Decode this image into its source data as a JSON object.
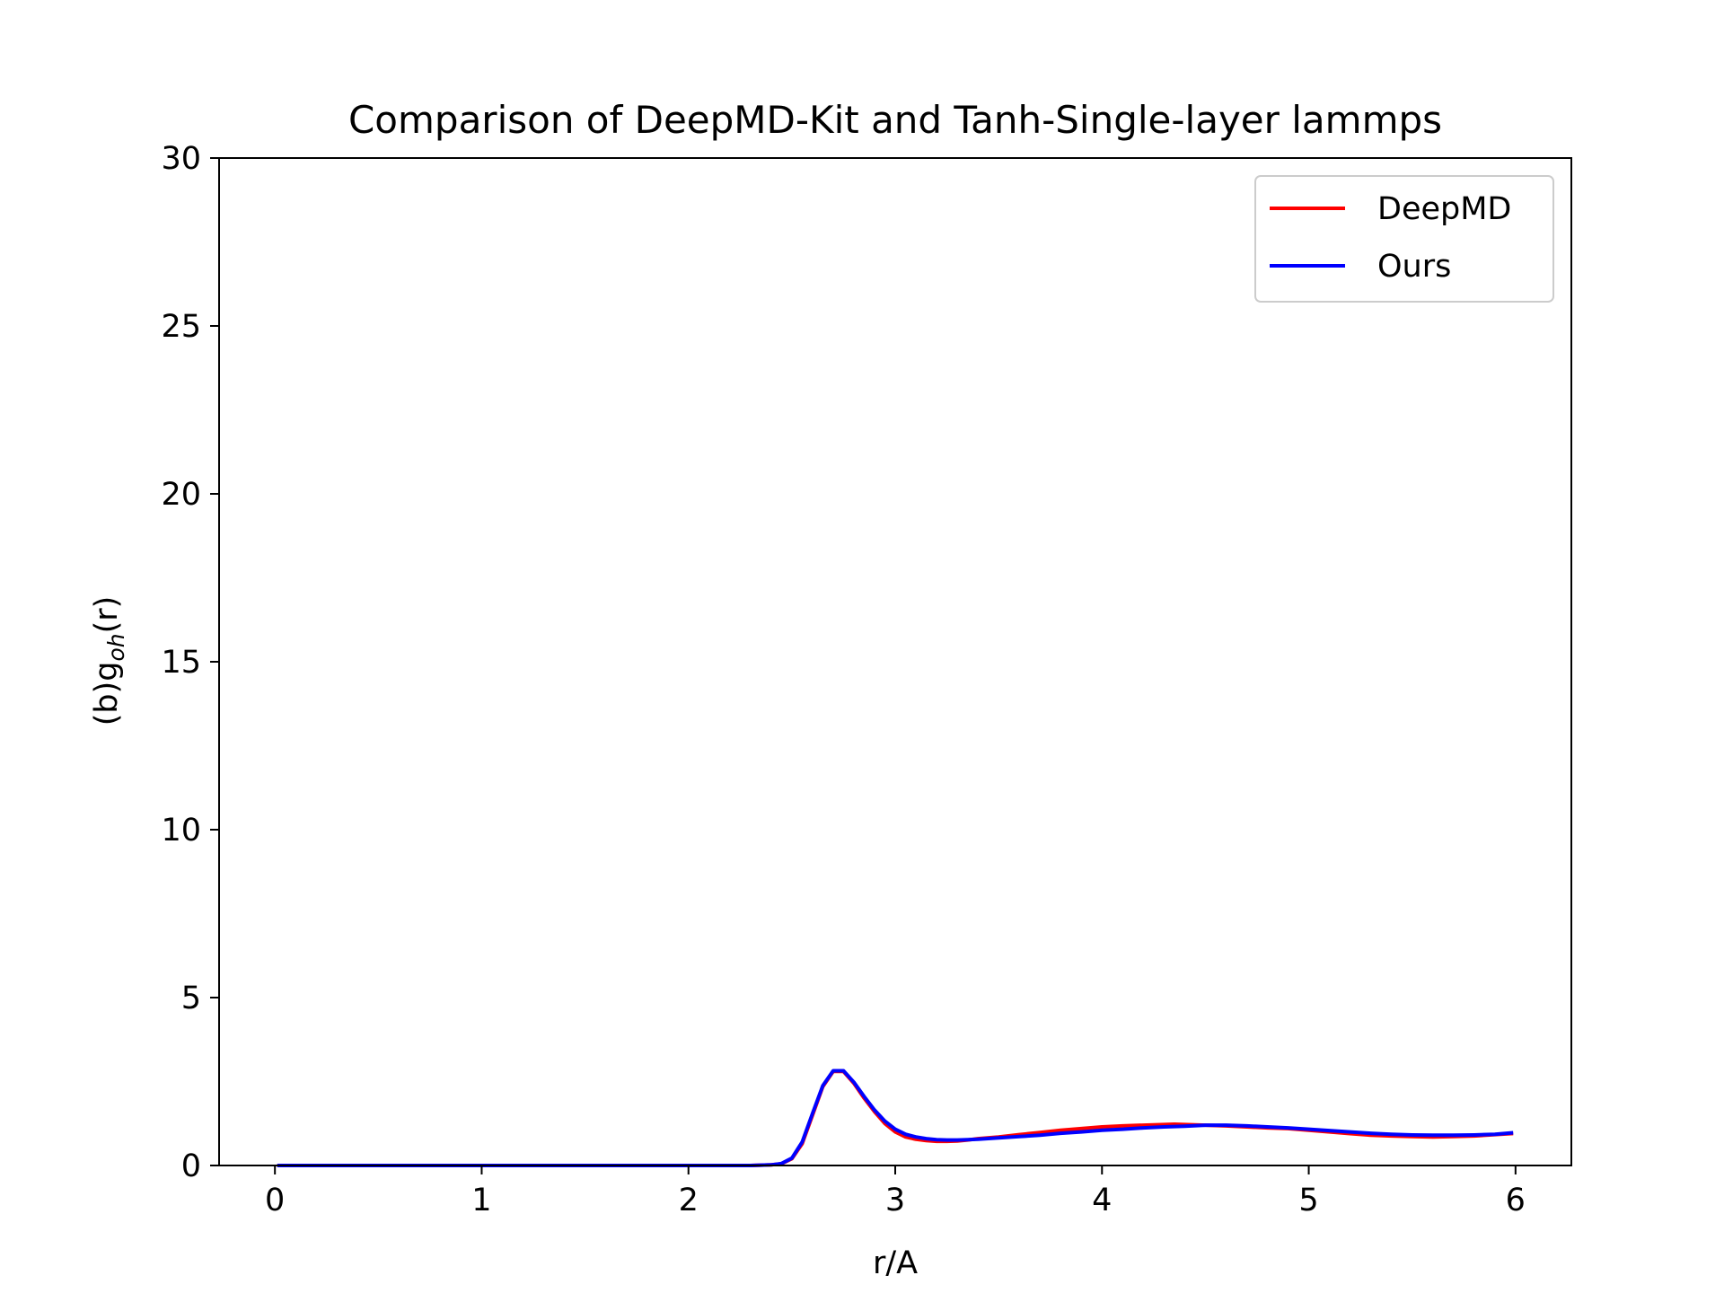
{
  "chart_data": {
    "type": "line",
    "title": "Comparison of DeepMD-Kit and Tanh-Single-layer lammps",
    "xlabel": "r/A",
    "ylabel_main": "(b)g",
    "ylabel_sub": "oh",
    "ylabel_tail": "(r)",
    "xlim": [
      -0.27,
      6.27
    ],
    "ylim": [
      0,
      30
    ],
    "xticks": [
      0,
      1,
      2,
      3,
      4,
      5,
      6
    ],
    "yticks": [
      0,
      5,
      10,
      15,
      20,
      25,
      30
    ],
    "grid": false,
    "legend_position": "top-right",
    "colors": {
      "deepmd": "#ff0000",
      "ours": "#0000ff"
    },
    "series": [
      {
        "name": "DeepMD",
        "color": "#ff0000",
        "x": [
          0.02,
          0.5,
          1.0,
          1.5,
          2.0,
          2.3,
          2.4,
          2.45,
          2.5,
          2.55,
          2.6,
          2.65,
          2.7,
          2.75,
          2.8,
          2.85,
          2.9,
          2.95,
          3.0,
          3.05,
          3.1,
          3.15,
          3.2,
          3.25,
          3.3,
          3.35,
          3.4,
          3.5,
          3.6,
          3.7,
          3.8,
          3.9,
          4.0,
          4.1,
          4.2,
          4.3,
          4.35,
          4.4,
          4.5,
          4.6,
          4.7,
          4.8,
          4.9,
          5.0,
          5.1,
          5.2,
          5.3,
          5.4,
          5.5,
          5.6,
          5.7,
          5.8,
          5.9,
          5.98
        ],
        "y": [
          0.0,
          0.0,
          0.0,
          0.0,
          0.0,
          0.0,
          0.02,
          0.05,
          0.2,
          0.65,
          1.5,
          2.35,
          2.8,
          2.8,
          2.45,
          2.0,
          1.6,
          1.25,
          1.0,
          0.85,
          0.78,
          0.74,
          0.72,
          0.72,
          0.73,
          0.76,
          0.8,
          0.85,
          0.92,
          0.98,
          1.05,
          1.1,
          1.15,
          1.18,
          1.2,
          1.22,
          1.23,
          1.22,
          1.2,
          1.18,
          1.15,
          1.12,
          1.1,
          1.05,
          1.0,
          0.95,
          0.9,
          0.88,
          0.86,
          0.85,
          0.86,
          0.88,
          0.92,
          0.95
        ]
      },
      {
        "name": "Ours",
        "color": "#0000ff",
        "x": [
          0.02,
          0.5,
          1.0,
          1.5,
          2.0,
          2.3,
          2.4,
          2.45,
          2.5,
          2.55,
          2.6,
          2.65,
          2.7,
          2.75,
          2.8,
          2.85,
          2.9,
          2.95,
          3.0,
          3.05,
          3.1,
          3.15,
          3.2,
          3.25,
          3.3,
          3.35,
          3.4,
          3.5,
          3.6,
          3.7,
          3.8,
          3.9,
          4.0,
          4.1,
          4.2,
          4.3,
          4.4,
          4.5,
          4.6,
          4.7,
          4.8,
          4.9,
          5.0,
          5.1,
          5.2,
          5.3,
          5.4,
          5.5,
          5.6,
          5.7,
          5.8,
          5.9,
          5.98
        ],
        "y": [
          0.0,
          0.0,
          0.0,
          0.0,
          0.0,
          0.0,
          0.02,
          0.06,
          0.22,
          0.7,
          1.55,
          2.38,
          2.82,
          2.82,
          2.48,
          2.05,
          1.65,
          1.32,
          1.08,
          0.93,
          0.85,
          0.8,
          0.77,
          0.76,
          0.76,
          0.77,
          0.78,
          0.82,
          0.86,
          0.9,
          0.96,
          1.0,
          1.05,
          1.08,
          1.12,
          1.15,
          1.17,
          1.2,
          1.2,
          1.18,
          1.15,
          1.12,
          1.08,
          1.04,
          1.0,
          0.96,
          0.93,
          0.91,
          0.9,
          0.9,
          0.91,
          0.93,
          0.97
        ]
      }
    ]
  }
}
